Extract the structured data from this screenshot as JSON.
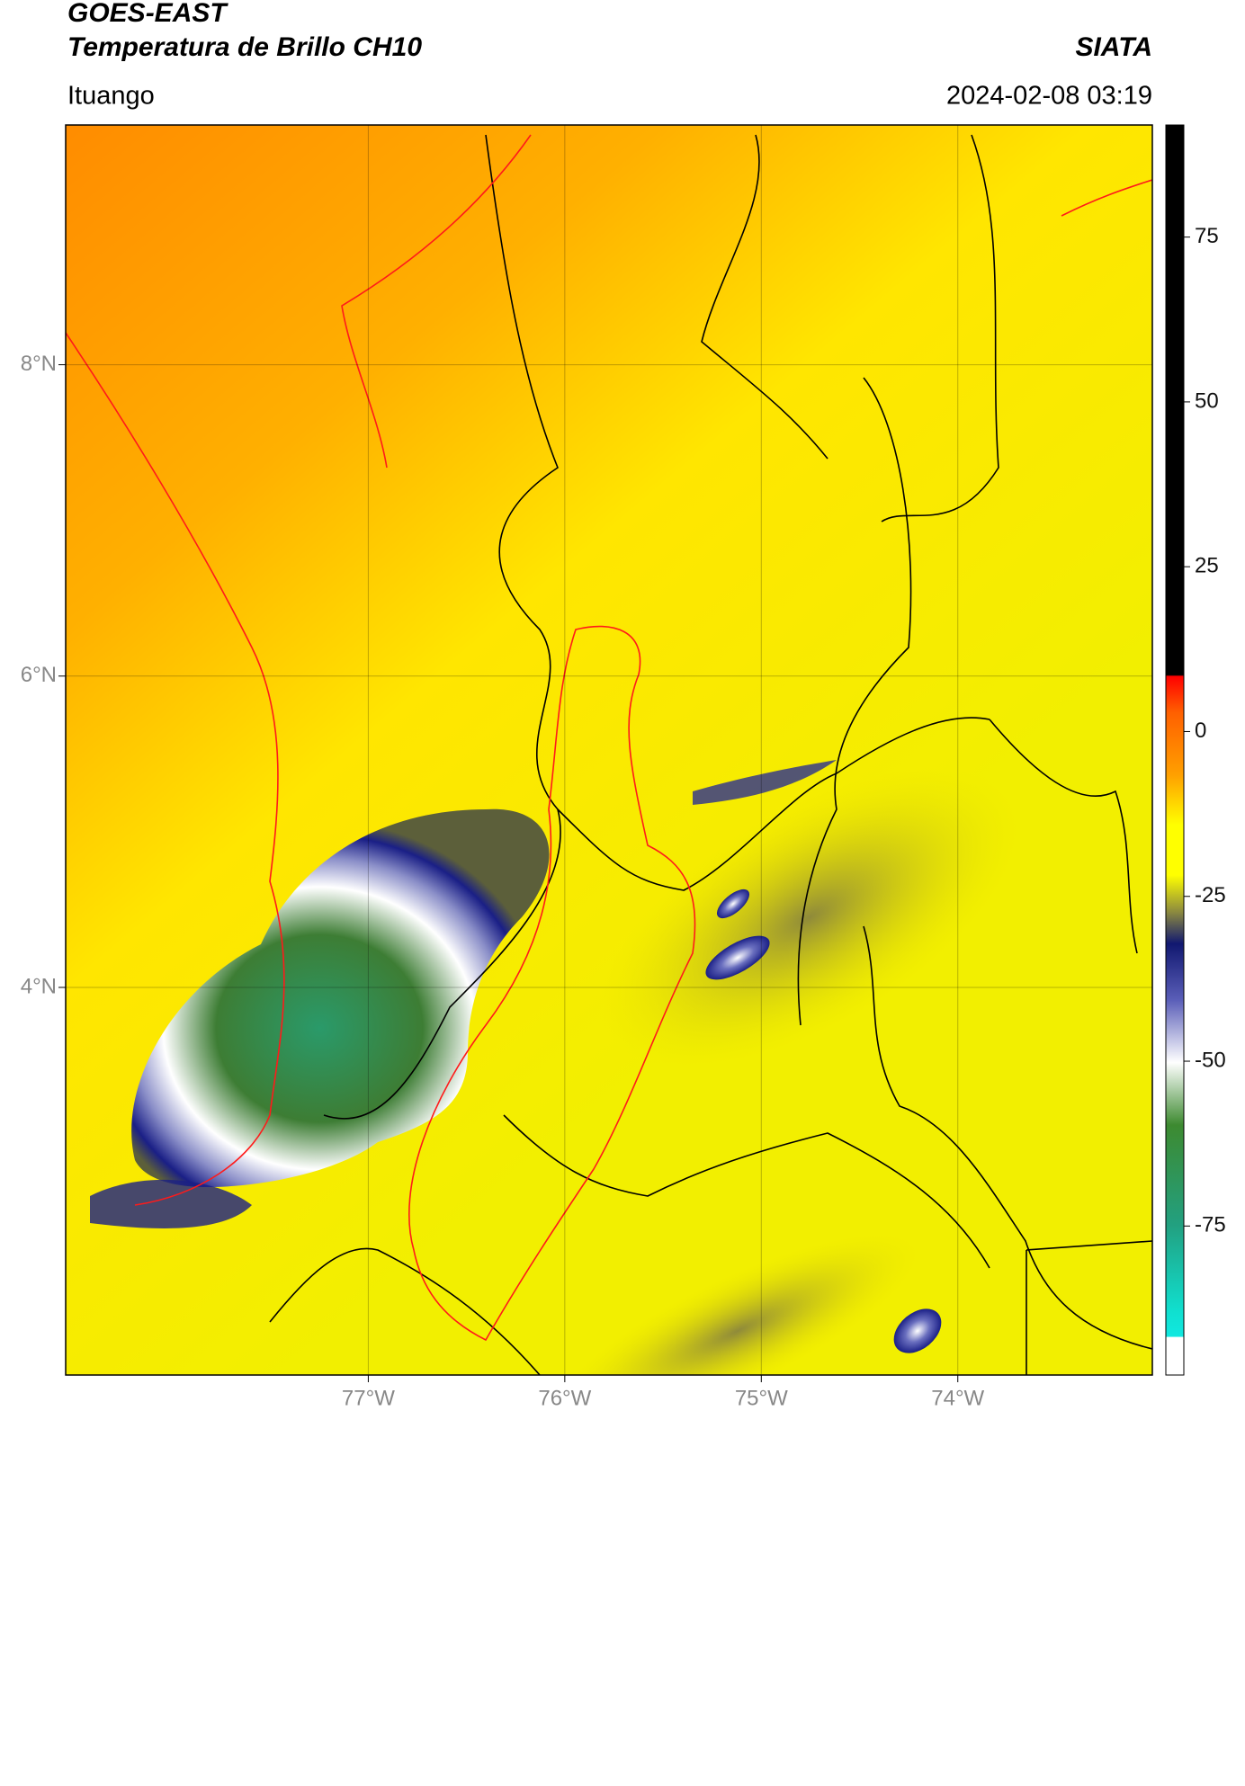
{
  "chart_data": {
    "type": "map",
    "title": "GOES-EAST",
    "subtitle": "Temperatura de Brillo CH10",
    "source": "SIATA",
    "region": "Ituango",
    "datetime": "2024-02-08 03:19",
    "xlim": [
      -78.54,
      -73.01
    ],
    "ylim": [
      1.51,
      9.54
    ],
    "xticks": [
      {
        "value": -77,
        "label": "77°W"
      },
      {
        "value": -76,
        "label": "76°W"
      },
      {
        "value": -75,
        "label": "75°W"
      },
      {
        "value": -74,
        "label": "74°W"
      }
    ],
    "yticks": [
      {
        "value": 8,
        "label": "8°N"
      },
      {
        "value": 6,
        "label": "6°N"
      },
      {
        "value": 4,
        "label": "4°N"
      }
    ],
    "grid": true,
    "colorbar": {
      "lim": [
        -97.6,
        92
      ],
      "ticks": [
        75,
        50,
        25,
        0,
        -25,
        -50,
        -75
      ]
    }
  }
}
